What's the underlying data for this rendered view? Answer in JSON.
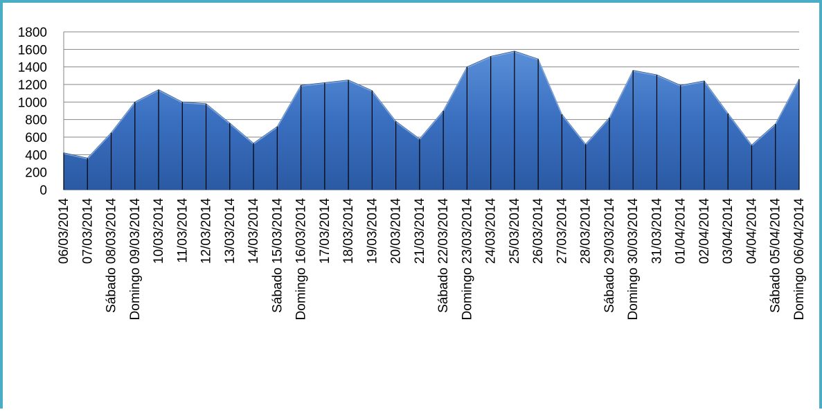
{
  "chart_data": {
    "type": "area",
    "title": "",
    "xlabel": "",
    "ylabel": "",
    "ylim": [
      0,
      1800
    ],
    "yticks": [
      0,
      200,
      400,
      600,
      800,
      1000,
      1200,
      1400,
      1600,
      1800
    ],
    "grid": true,
    "legend": "none",
    "color": "#3a6fc0",
    "categories": [
      "06/03/2014",
      "07/03/2014",
      "Sábado 08/03/2014",
      "Domingo 09/03/2014",
      "10/03/2014",
      "11/03/2014",
      "12/03/2014",
      "13/03/2014",
      "14/03/2014",
      "Sábado 15/03/2014",
      "Domingo 16/03/2014",
      "17/03/2014",
      "18/03/2014",
      "19/03/2014",
      "20/03/2014",
      "21/03/2014",
      "Sábado 22/03/2014",
      "Domingo 23/03/2014",
      "24/03/2014",
      "25/03/2014",
      "26/03/2014",
      "27/03/2014",
      "28/03/2014",
      "Sábado 29/03/2014",
      "Domingo 30/03/2014",
      "31/03/2014",
      "01/04/2014",
      "02/04/2014",
      "03/04/2014",
      "04/04/2014",
      "Sábado 05/04/2014",
      "Domingo 06/04/2014"
    ],
    "values": [
      420,
      360,
      650,
      1000,
      1140,
      1000,
      980,
      760,
      530,
      720,
      1190,
      1220,
      1250,
      1130,
      780,
      580,
      900,
      1400,
      1520,
      1580,
      1490,
      860,
      520,
      820,
      1360,
      1310,
      1190,
      1240,
      870,
      510,
      750,
      1260
    ]
  }
}
